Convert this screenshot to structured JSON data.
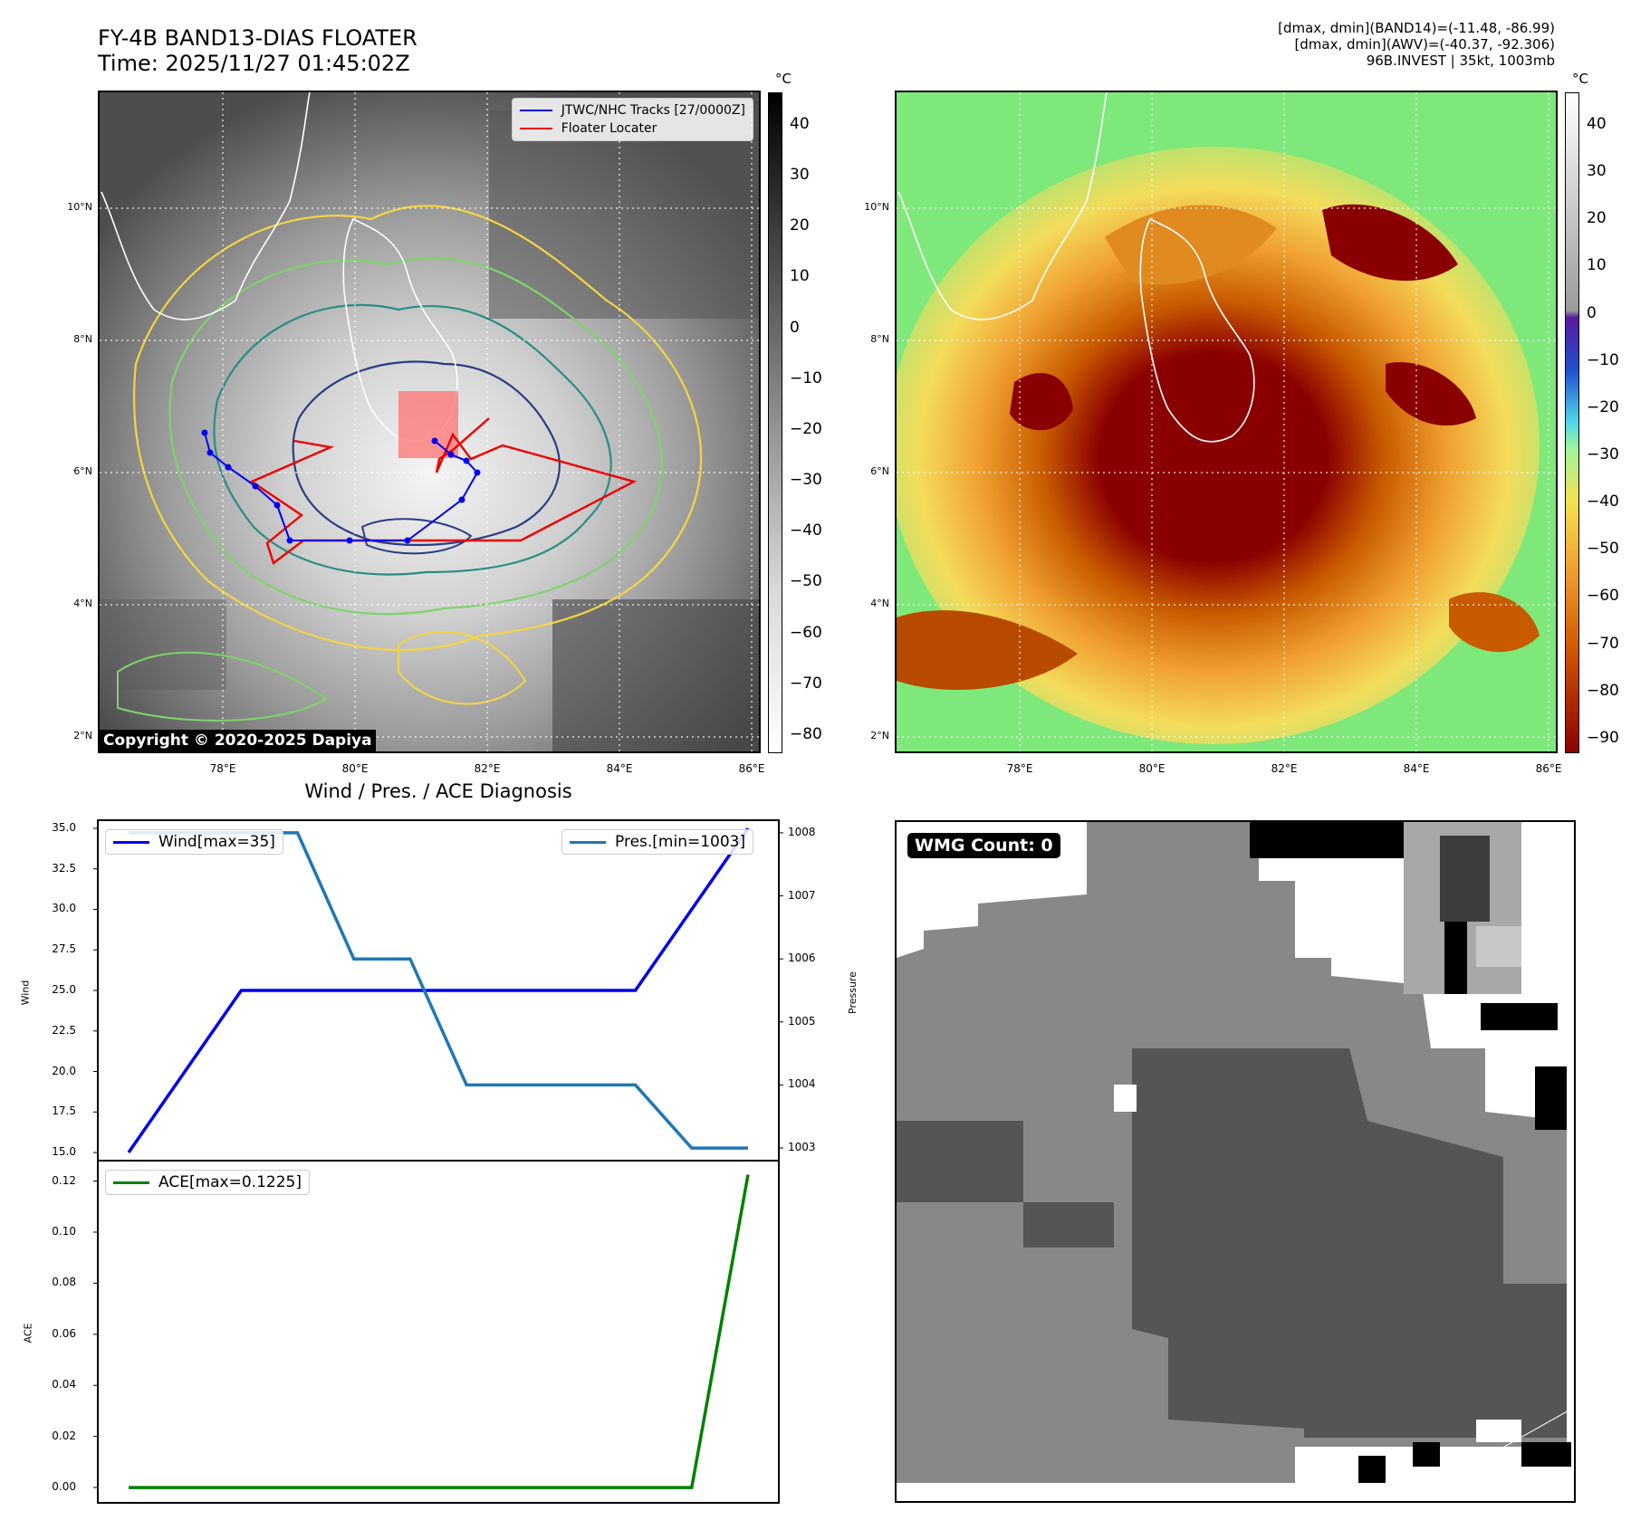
{
  "header": {
    "title_line1": "FY-4B BAND13-DIAS FLOATER",
    "title_line2": "Time: 2025/11/27 01:45:02Z",
    "info_line1": "[dmax, dmin](BAND14)=(-11.48, -86.99)",
    "info_line2": "[dmax, dmin](AWV)=(-40.37, -92.306)",
    "info_line3": "96B.INVEST | 35kt, 1003mb"
  },
  "colorbars": {
    "unit": "°C",
    "left_ticks": [
      "40",
      "30",
      "20",
      "10",
      "0",
      "−10",
      "−20",
      "−30",
      "−40",
      "−50",
      "−60",
      "−70",
      "−80"
    ],
    "right_ticks": [
      "40",
      "30",
      "20",
      "10",
      "0",
      "−10",
      "−20",
      "−30",
      "−40",
      "−50",
      "−60",
      "−70",
      "−80",
      "−90"
    ]
  },
  "map": {
    "lat_labels": [
      "10°N",
      "8°N",
      "6°N",
      "4°N",
      "2°N"
    ],
    "lon_labels": [
      "78°E",
      "80°E",
      "82°E",
      "84°E",
      "86°E"
    ],
    "legend_tracks": "JTWC/NHC Tracks [27/0000Z]",
    "legend_floater": "Floater Locater",
    "copyright": "Copyright © 2020-2025 Dapiya",
    "track_color": "#0000ee",
    "floater_color": "#ee0000"
  },
  "diag": {
    "title": "Wind / Pres. / ACE Diagnosis",
    "wmg": "WMG Count: 0"
  },
  "chart_data": [
    {
      "type": "line",
      "x": [
        0,
        1,
        2,
        3,
        4,
        5,
        6,
        7,
        8,
        9,
        10,
        11
      ],
      "series": [
        {
          "name": "Wind[max=35]",
          "axis": "left",
          "color": "#0000ee",
          "values": [
            15,
            20,
            25,
            25,
            25,
            25,
            25,
            25,
            25,
            25,
            30,
            35
          ]
        },
        {
          "name": "Pres.[min=1003]",
          "axis": "right",
          "color": "#1f77b4",
          "values": [
            1008,
            1008,
            1008,
            1008,
            1006,
            1006,
            1004,
            1004,
            1004,
            1004,
            1003,
            1003
          ]
        }
      ],
      "ylabel": "Wind",
      "y2label": "Pressure",
      "ylim": [
        14.5,
        35.5
      ],
      "y2lim": [
        1002.8,
        1008.2
      ],
      "yticks": [
        "35.0",
        "32.5",
        "30.0",
        "27.5",
        "25.0",
        "22.5",
        "20.0",
        "17.5",
        "15.0"
      ],
      "y2ticks": [
        "1008",
        "1007",
        "1006",
        "1005",
        "1004",
        "1003"
      ]
    },
    {
      "type": "line",
      "x": [
        0,
        1,
        2,
        3,
        4,
        5,
        6,
        7,
        8,
        9,
        10,
        11
      ],
      "series": [
        {
          "name": "ACE[max=0.1225]",
          "color": "#008000",
          "values": [
            0,
            0,
            0,
            0,
            0,
            0,
            0,
            0,
            0,
            0,
            0,
            0.1225
          ]
        }
      ],
      "ylabel": "ACE",
      "ylim": [
        -0.006,
        0.128
      ],
      "yticks": [
        "0.12",
        "0.10",
        "0.08",
        "0.06",
        "0.04",
        "0.02",
        "0.00"
      ]
    }
  ]
}
